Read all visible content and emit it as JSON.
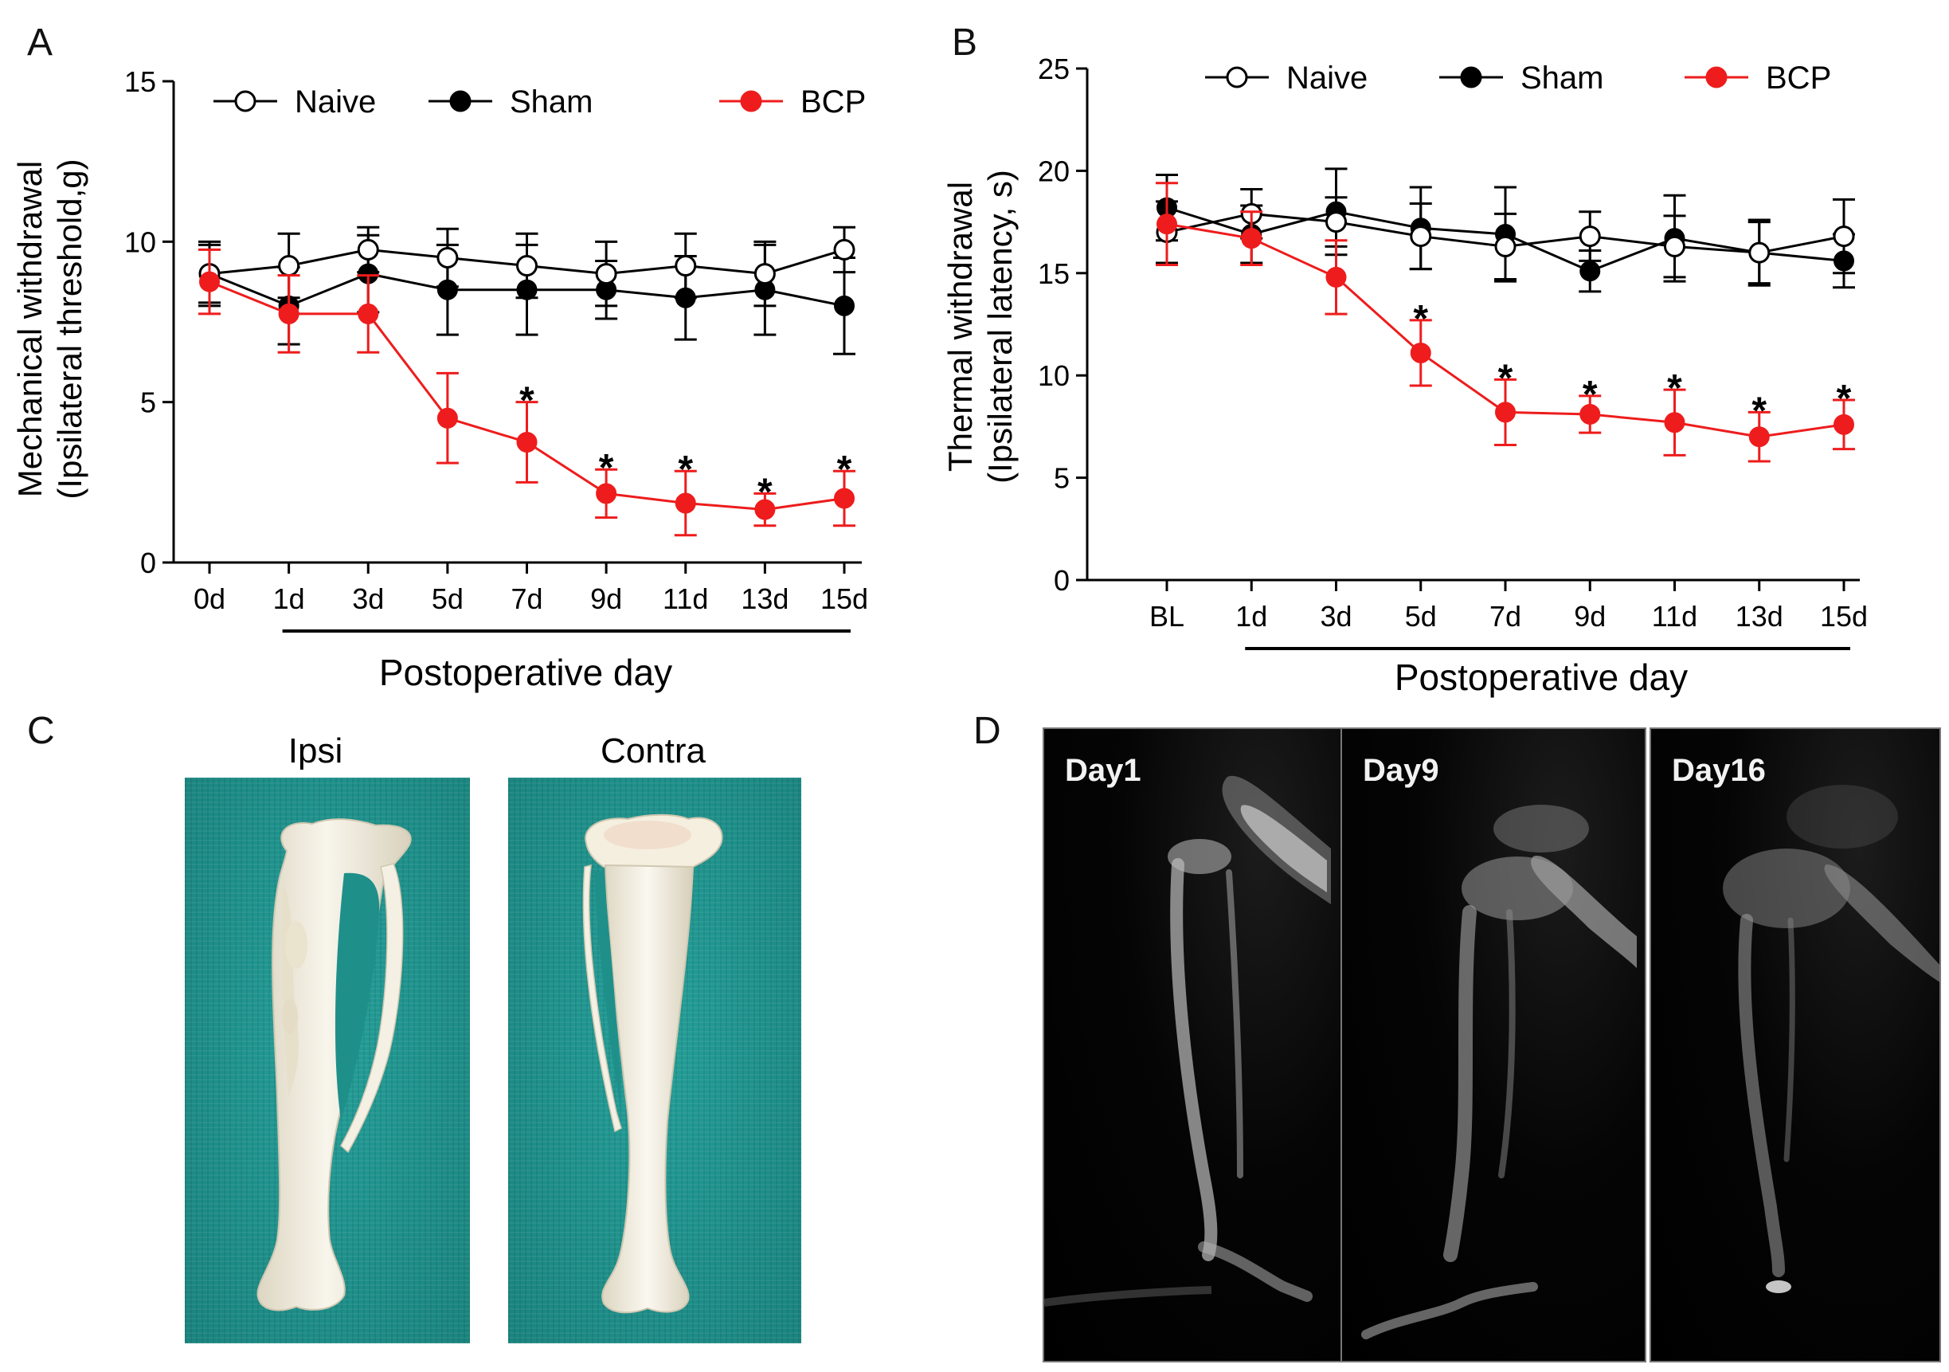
{
  "panels": {
    "a": "A",
    "b": "B",
    "c": "C",
    "d": "D"
  },
  "photo_c": {
    "left_label": "Ipsi",
    "right_label": "Contra",
    "cloth_color": "#1f8f8a",
    "bone_color": "#f3efe3"
  },
  "photo_d": {
    "labels": [
      "Day1",
      "Day9",
      "Day16"
    ]
  },
  "colors": {
    "naive": "#000000",
    "sham": "#000000",
    "bcp": "#ee1c1c",
    "axis": "#000000"
  },
  "chart_data": [
    {
      "type": "line",
      "panel": "A",
      "categories": [
        "0d",
        "1d",
        "3d",
        "5d",
        "7d",
        "9d",
        "11d",
        "13d",
        "15d"
      ],
      "xlabel": "Postoperative day",
      "ylabel_line1": "Mechanical withdrawal",
      "ylabel_line2": "(Ipsilateral threshold,g)",
      "ylim": [
        0,
        15
      ],
      "yticks": [
        0,
        5,
        10,
        15
      ],
      "significance_marker": "*",
      "legend": [
        "Naive",
        "Sham",
        "BCP"
      ],
      "series": [
        {
          "name": "Naive",
          "marker": "open-circle",
          "values": [
            9.0,
            9.25,
            9.75,
            9.5,
            9.25,
            9.0,
            9.25,
            9.0,
            9.75
          ],
          "errors": [
            0.9,
            1.0,
            0.7,
            0.9,
            1.0,
            1.0,
            1.0,
            1.0,
            0.7
          ],
          "significant": [
            false,
            false,
            false,
            false,
            false,
            false,
            false,
            false,
            false
          ]
        },
        {
          "name": "Sham",
          "marker": "filled-circle",
          "values": [
            9.0,
            8.0,
            9.0,
            8.5,
            8.5,
            8.5,
            8.25,
            8.5,
            8.0
          ],
          "errors": [
            1.0,
            1.2,
            1.2,
            1.4,
            1.4,
            0.9,
            1.3,
            1.4,
            1.5
          ],
          "significant": [
            false,
            false,
            false,
            false,
            false,
            false,
            false,
            false,
            false
          ]
        },
        {
          "name": "BCP",
          "marker": "filled-circle-red",
          "values": [
            8.75,
            7.75,
            7.75,
            4.5,
            3.75,
            2.15,
            1.85,
            1.65,
            2.0
          ],
          "errors": [
            1.0,
            1.2,
            1.2,
            1.4,
            1.25,
            0.75,
            1.0,
            0.5,
            0.85
          ],
          "significant": [
            false,
            false,
            false,
            false,
            true,
            true,
            true,
            true,
            true
          ]
        }
      ]
    },
    {
      "type": "line",
      "panel": "B",
      "categories": [
        "BL",
        "1d",
        "3d",
        "5d",
        "7d",
        "9d",
        "11d",
        "13d",
        "15d"
      ],
      "xlabel": "Postoperative day",
      "ylabel_line1": "Thermal withdrawal",
      "ylabel_line2": "(Ipsilateral latency, s)",
      "ylim": [
        0,
        25
      ],
      "yticks": [
        0,
        5,
        10,
        15,
        20,
        25
      ],
      "significance_marker": "*",
      "legend": [
        "Naive",
        "Sham",
        "BCP"
      ],
      "series": [
        {
          "name": "Naive",
          "marker": "open-circle",
          "values": [
            17.0,
            17.9,
            17.5,
            16.8,
            16.3,
            16.8,
            16.3,
            16.0,
            16.8
          ],
          "errors": [
            1.5,
            1.2,
            1.2,
            1.6,
            1.6,
            1.2,
            1.5,
            1.5,
            1.8
          ],
          "significant": [
            false,
            false,
            false,
            false,
            false,
            false,
            false,
            false,
            false
          ]
        },
        {
          "name": "Sham",
          "marker": "filled-circle",
          "values": [
            18.2,
            16.9,
            18.0,
            17.2,
            16.9,
            15.1,
            16.7,
            16.0,
            15.6
          ],
          "errors": [
            1.6,
            1.4,
            2.1,
            2.0,
            2.3,
            1.0,
            2.1,
            1.6,
            1.3
          ],
          "significant": [
            false,
            false,
            false,
            false,
            false,
            false,
            false,
            false,
            false
          ]
        },
        {
          "name": "BCP",
          "marker": "filled-circle-red",
          "values": [
            17.4,
            16.7,
            14.8,
            11.1,
            8.2,
            8.1,
            7.7,
            7.0,
            7.6
          ],
          "errors": [
            2.0,
            1.3,
            1.8,
            1.6,
            1.6,
            0.9,
            1.6,
            1.2,
            1.2
          ],
          "significant": [
            false,
            false,
            false,
            true,
            true,
            true,
            true,
            true,
            true
          ]
        }
      ]
    }
  ]
}
